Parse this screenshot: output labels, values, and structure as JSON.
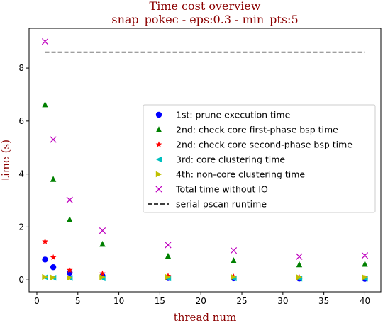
{
  "chart_data": {
    "type": "scatter",
    "title": "Time cost overview",
    "subtitle": "snap_pokec - eps:0.3 - min_pts:5",
    "xlabel": "thread num",
    "ylabel": "time (s)",
    "xlim": [
      -0.95,
      41.95
    ],
    "ylim": [
      -0.45,
      9.5
    ],
    "xticks": [
      0,
      5,
      10,
      15,
      20,
      25,
      30,
      35,
      40
    ],
    "yticks": [
      0,
      2,
      4,
      6,
      8
    ],
    "grid": false,
    "legend_position": "center-right",
    "x": [
      1,
      2,
      4,
      8,
      16,
      24,
      32,
      40
    ],
    "series": [
      {
        "name": "1st: prune execution time",
        "marker": "circle",
        "color": "#0000ff",
        "values": [
          0.77,
          0.48,
          0.27,
          0.15,
          0.07,
          0.06,
          0.05,
          0.04
        ]
      },
      {
        "name": "2nd: check core first-phase bsp time",
        "marker": "triangle-up",
        "color": "#008000",
        "values": [
          6.62,
          3.8,
          2.28,
          1.35,
          0.9,
          0.73,
          0.58,
          0.6
        ]
      },
      {
        "name": "2nd: check core second-phase bsp time",
        "marker": "star",
        "color": "#ff0000",
        "values": [
          1.45,
          0.85,
          0.37,
          0.24,
          0.15,
          0.12,
          0.1,
          0.1
        ]
      },
      {
        "name": "3rd: core clustering time",
        "marker": "triangle-left",
        "color": "#00bfbf",
        "values": [
          0.1,
          0.08,
          0.07,
          0.06,
          0.06,
          0.06,
          0.05,
          0.05
        ]
      },
      {
        "name": "4th: non-core clustering time",
        "marker": "triangle-right",
        "color": "#bfbf00",
        "values": [
          0.11,
          0.09,
          0.08,
          0.1,
          0.11,
          0.11,
          0.1,
          0.1
        ]
      },
      {
        "name": "Total time without IO",
        "marker": "x",
        "color": "#bf00bf",
        "values": [
          9.0,
          5.3,
          3.02,
          1.86,
          1.32,
          1.11,
          0.88,
          0.92
        ]
      }
    ],
    "reference_line": {
      "name": "serial pscan runtime",
      "style": "dashed",
      "color": "#000000",
      "y": 8.6,
      "x_range": [
        1,
        40
      ]
    }
  }
}
